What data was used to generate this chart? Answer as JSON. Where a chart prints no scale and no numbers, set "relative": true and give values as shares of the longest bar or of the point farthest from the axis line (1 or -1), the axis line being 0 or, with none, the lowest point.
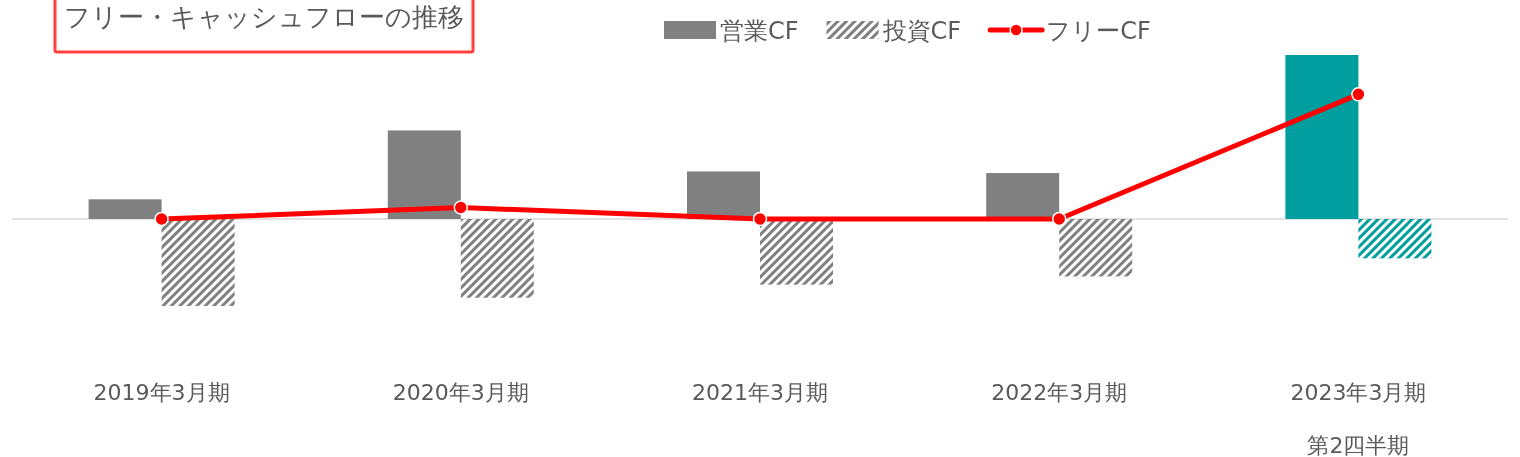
{
  "chart_data": {
    "type": "bar",
    "title": "フリー・キャッシュフローの推移",
    "relative": true,
    "legend": "top",
    "grid": false,
    "categories": [
      "2019年3月期",
      "2020年3月期",
      "2021年3月期",
      "2022年3月期",
      "2023年3月期第2四半期"
    ],
    "series": [
      {
        "name": "営業CF",
        "color": "#808080",
        "colors": [
          "#808080",
          "#808080",
          "#808080",
          "#808080",
          "#009e9e"
        ],
        "values": [
          0.12,
          0.54,
          0.29,
          0.28,
          1
        ]
      },
      {
        "name": "投資CF",
        "color": "#808080",
        "colors": [
          "#808080",
          "#808080",
          "#808080",
          "#808080",
          "#009e9e"
        ],
        "values": [
          -0.53,
          -0.48,
          -0.4,
          -0.35,
          -0.24
        ]
      },
      {
        "name": "フリーCF",
        "type": "line",
        "color": "#ff0000",
        "marker": "circle",
        "values": [
          0,
          0.07,
          0,
          0,
          0.76
        ]
      }
    ]
  }
}
